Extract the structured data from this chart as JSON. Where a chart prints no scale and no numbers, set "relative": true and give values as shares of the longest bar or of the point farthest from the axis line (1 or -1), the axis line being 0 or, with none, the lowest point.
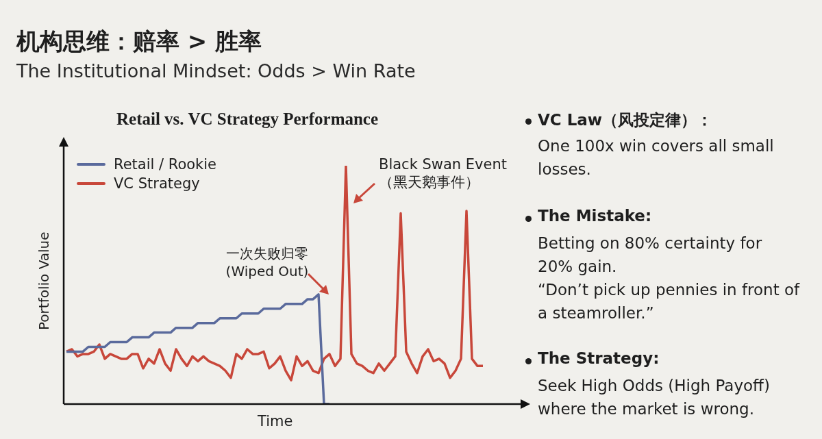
{
  "chart_data": {
    "type": "line",
    "title": "机构思维：赔率 > 胜率",
    "subtitle": "The Institutional Mindset: Odds > Win Rate",
    "xlabel": "Time",
    "ylabel": "Portfolio Value",
    "relative": true,
    "legend": "top left",
    "categories": [
      null,
      null,
      null,
      null,
      null,
      null,
      null,
      null,
      null,
      null,
      null,
      null,
      null,
      null,
      null,
      null,
      null,
      null,
      null,
      null,
      null,
      null,
      null,
      null,
      null,
      null,
      null,
      null,
      null,
      null,
      null,
      null,
      null,
      null,
      null,
      null,
      null,
      null,
      null,
      null,
      null,
      null,
      null,
      null,
      null,
      null,
      null,
      null,
      null,
      null,
      null,
      null,
      null,
      null,
      null,
      null,
      null,
      null,
      null,
      null,
      null,
      null,
      null,
      null,
      null,
      null,
      null,
      null,
      null,
      null,
      null,
      null,
      null,
      null,
      null,
      null,
      null
    ],
    "series": [
      {
        "name": "Retail / Rookie",
        "color": "#5a6a9c",
        "values": [
          0.22,
          0.22,
          0.22,
          0.22,
          0.24,
          0.24,
          0.24,
          0.24,
          0.26,
          0.26,
          0.26,
          0.26,
          0.28,
          0.28,
          0.28,
          0.28,
          0.3,
          0.3,
          0.3,
          0.3,
          0.32,
          0.32,
          0.32,
          0.32,
          0.34,
          0.34,
          0.34,
          0.34,
          0.36,
          0.36,
          0.36,
          0.36,
          0.38,
          0.38,
          0.38,
          0.38,
          0.4,
          0.4,
          0.4,
          0.4,
          0.42,
          0.42,
          0.42,
          0.42,
          0.44,
          0.44,
          0.46,
          0,
          0,
          null,
          null,
          null,
          null,
          null,
          null,
          null,
          null,
          null,
          null,
          null,
          null,
          null,
          null,
          null,
          null,
          null,
          null,
          null,
          null,
          null,
          null,
          null,
          null,
          null,
          null,
          null,
          null
        ]
      },
      {
        "name": "VC Strategy",
        "color": "#c8473a",
        "values": [
          0.22,
          0.23,
          0.2,
          0.21,
          0.21,
          0.22,
          0.25,
          0.19,
          0.21,
          0.2,
          0.19,
          0.19,
          0.21,
          0.21,
          0.15,
          0.19,
          0.17,
          0.23,
          0.17,
          0.14,
          0.23,
          0.19,
          0.16,
          0.2,
          0.18,
          0.2,
          0.18,
          0.17,
          0.16,
          0.14,
          0.11,
          0.21,
          0.19,
          0.23,
          0.21,
          0.21,
          0.22,
          0.15,
          0.17,
          0.2,
          0.14,
          0.1,
          0.2,
          0.16,
          0.18,
          0.14,
          0.13,
          0.19,
          0.21,
          0.16,
          0.19,
          1,
          0.21,
          0.17,
          0.16,
          0.14,
          0.13,
          0.17,
          0.14,
          0.17,
          0.2,
          0.8,
          0.22,
          0.17,
          0.13,
          0.2,
          0.23,
          0.18,
          0.19,
          0.17,
          0.11,
          0.14,
          0.19,
          0.81,
          0.19,
          0.16,
          0.16
        ]
      }
    ],
    "annotations": [
      "Retail vs. VC Strategy Performance",
      "一次失败归零\n(Wiped Out)",
      "Black Swan Event\n（黑天鹅事件）",
      "VC Law（风投定律）：",
      "One 100x win covers all small losses.",
      "The Mistake:",
      "Betting on 80% certainty for 20% gain.",
      "“Don’t pick up pennies in front of a steamroller.”",
      "The Strategy:",
      "Seek High Odds (High Payoff) where the market is wrong."
    ]
  }
}
